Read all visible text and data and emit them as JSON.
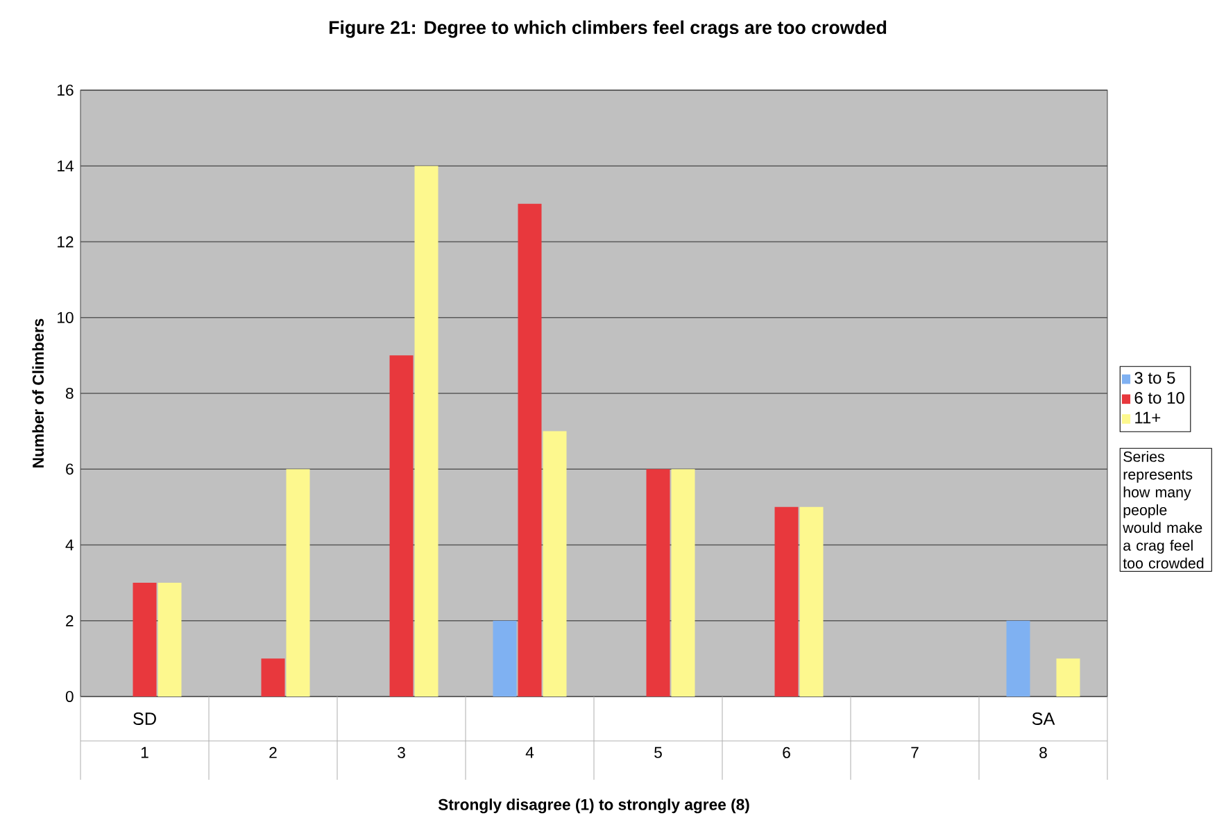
{
  "chart_data": {
    "type": "bar",
    "title": "Figure 21:  Degree to which climbers feel crags are too crowded",
    "xlabel": "Strongly disagree (1)  to strongly agree (8)",
    "ylabel": "Number of Climbers",
    "categories": [
      "1",
      "2",
      "3",
      "4",
      "5",
      "6",
      "7",
      "8"
    ],
    "series": [
      {
        "name": "3 to 5",
        "color": "#7fb1f2",
        "values": [
          0,
          0,
          0,
          2,
          0,
          0,
          0,
          2
        ]
      },
      {
        "name": "6 to 10",
        "color": "#e8383d",
        "values": [
          3,
          1,
          9,
          13,
          6,
          5,
          0,
          0
        ]
      },
      {
        "name": "11+",
        "color": "#fdf88e",
        "values": [
          3,
          6,
          14,
          7,
          6,
          5,
          0,
          1
        ]
      }
    ],
    "ylim": [
      0,
      16
    ],
    "yticks": [
      0,
      2,
      4,
      6,
      8,
      10,
      12,
      14,
      16
    ],
    "grid": "y",
    "legend": "right",
    "annotations": [
      "SD",
      "SA",
      "Series represents how many people would make a crag feel too crowded"
    ]
  }
}
